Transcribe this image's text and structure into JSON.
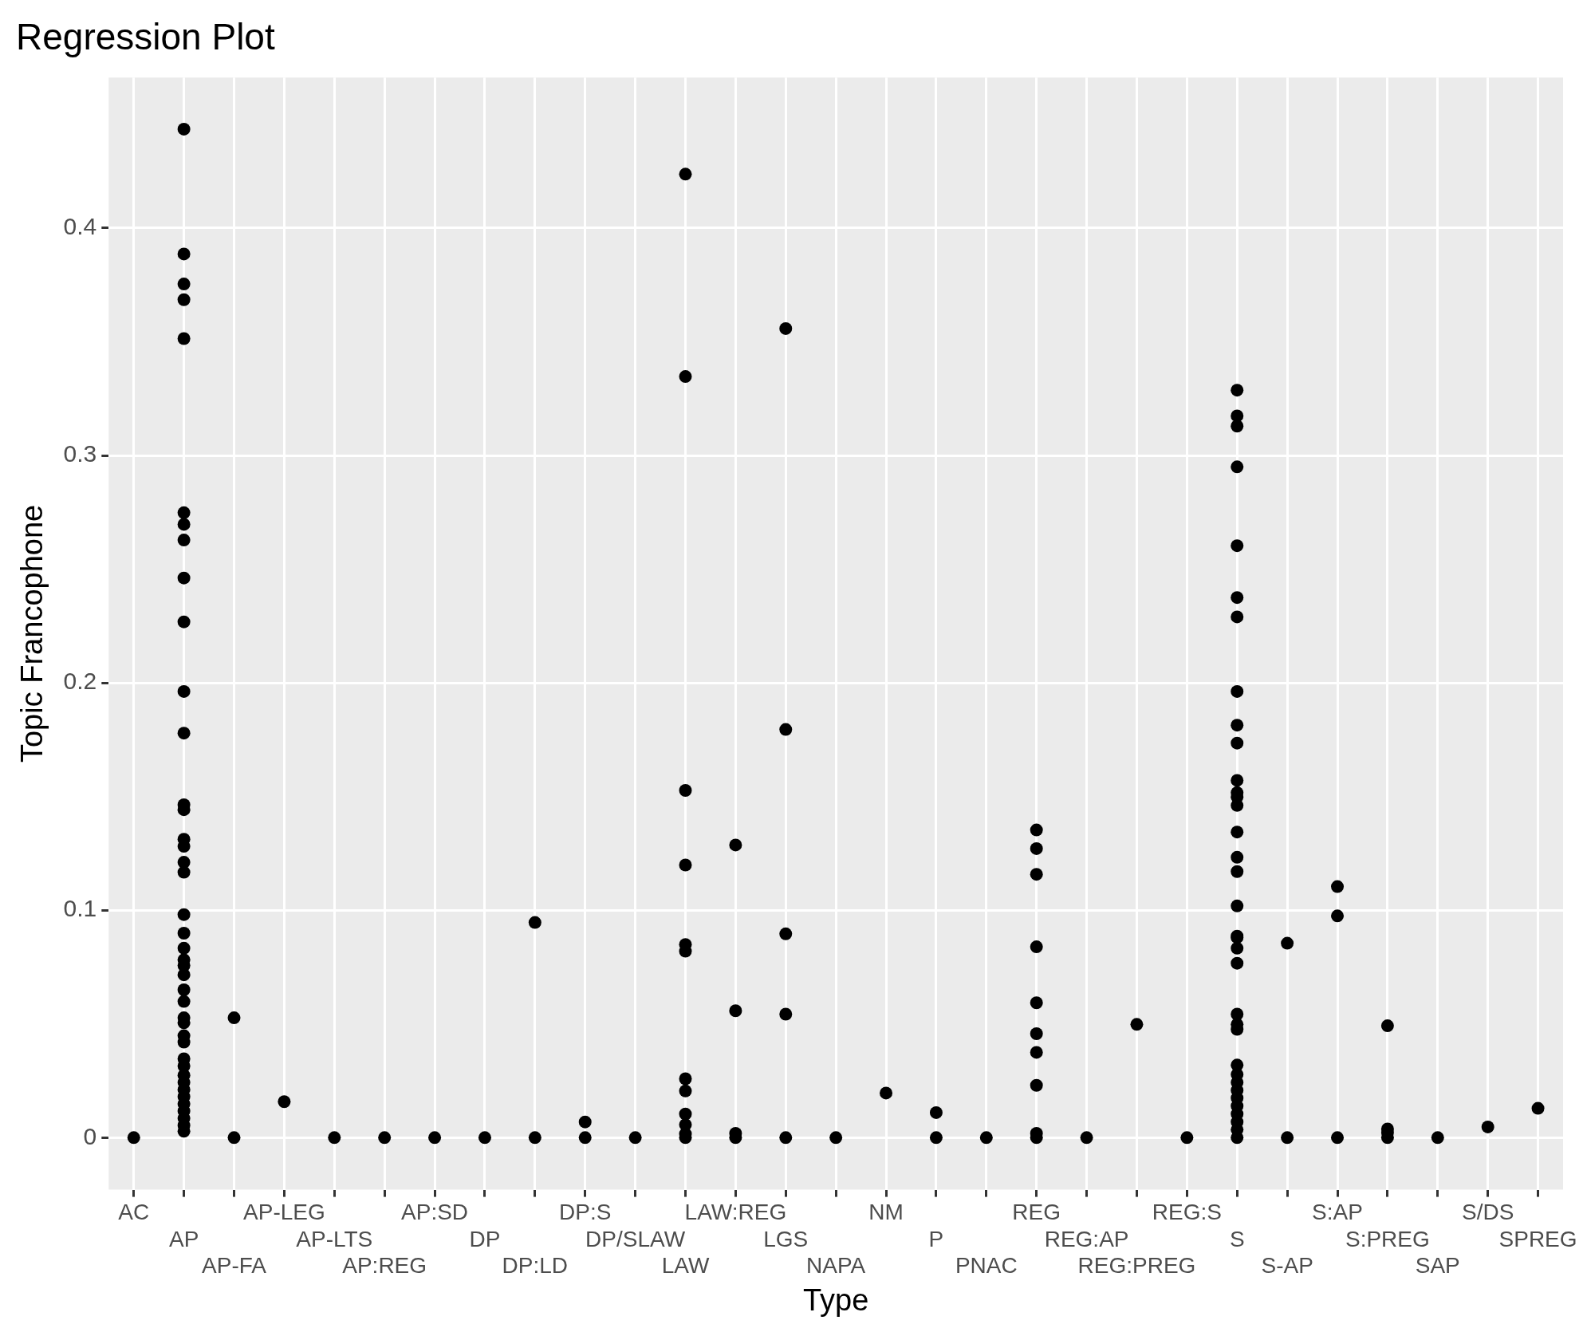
{
  "chart_data": {
    "type": "scatter",
    "title": "Regression Plot",
    "xlabel": "Type",
    "ylabel": "Topic Francophone",
    "categories": [
      "AC",
      "AP",
      "AP-FA",
      "AP-LEG",
      "AP-LTS",
      "AP:REG",
      "AP:SD",
      "DP",
      "DP:LD",
      "DP:S",
      "DP/SLAW",
      "LAW",
      "LAW:REG",
      "LGS",
      "NAPA",
      "NM",
      "P",
      "PNAC",
      "REG",
      "REG:AP",
      "REG:PREG",
      "REG:S",
      "S",
      "S-AP",
      "S:AP",
      "S:PREG",
      "SAP",
      "S/DS",
      "SPREG"
    ],
    "series": [
      {
        "color": "#000000",
        "x": [
          "AC",
          "AP",
          "AP",
          "AP",
          "AP",
          "AP",
          "AP",
          "AP",
          "AP",
          "AP",
          "AP",
          "AP",
          "AP",
          "AP",
          "AP",
          "AP",
          "AP",
          "AP",
          "AP",
          "AP",
          "AP",
          "AP",
          "AP",
          "AP",
          "AP",
          "AP",
          "AP",
          "AP",
          "AP",
          "AP",
          "AP",
          "AP",
          "AP",
          "AP",
          "AP",
          "AP",
          "AP",
          "AP",
          "AP",
          "AP",
          "AP",
          "AP",
          "AP-FA",
          "AP-FA",
          "AP-LEG",
          "AP-LTS",
          "AP:REG",
          "AP:SD",
          "DP",
          "DP:LD",
          "DP:LD",
          "DP:S",
          "DP:S",
          "DP/SLAW",
          "LAW",
          "LAW",
          "LAW",
          "LAW",
          "LAW",
          "LAW",
          "LAW",
          "LAW",
          "LAW",
          "LAW",
          "LAW",
          "LAW",
          "LAW:REG",
          "LAW:REG",
          "LAW:REG",
          "LAW:REG",
          "LGS",
          "LGS",
          "LGS",
          "LGS",
          "LGS",
          "NAPA",
          "NM",
          "P",
          "P",
          "PNAC",
          "REG",
          "REG",
          "REG",
          "REG",
          "REG",
          "REG",
          "REG",
          "REG",
          "REG",
          "REG",
          "REG:AP",
          "REG:PREG",
          "REG:S",
          "S",
          "S",
          "S",
          "S",
          "S",
          "S",
          "S",
          "S",
          "S",
          "S",
          "S",
          "S",
          "S",
          "S",
          "S",
          "S",
          "S",
          "S",
          "S",
          "S",
          "S",
          "S",
          "S",
          "S",
          "S",
          "S",
          "S",
          "S",
          "S",
          "S",
          "S",
          "S",
          "S",
          "S",
          "S",
          "S-AP",
          "S-AP",
          "S:AP",
          "S:AP",
          "S:AP",
          "S:PREG",
          "S:PREG",
          "S:PREG",
          "S:PREG",
          "SAP",
          "S/DS",
          "SPREG"
        ],
        "values": [
          0,
          0.4435,
          0.3886,
          0.3754,
          0.3685,
          0.3514,
          0.2748,
          0.2697,
          0.2628,
          0.2461,
          0.2268,
          0.1962,
          0.1779,
          0.1464,
          0.1442,
          0.1312,
          0.1281,
          0.1211,
          0.1167,
          0.0981,
          0.0899,
          0.0833,
          0.0782,
          0.0757,
          0.0716,
          0.065,
          0.0599,
          0.0527,
          0.0505,
          0.0448,
          0.042,
          0.0347,
          0.0315,
          0.0274,
          0.0243,
          0.0211,
          0.018,
          0.0148,
          0.0117,
          0.0085,
          0.0054,
          0.0028,
          0,
          0.0527,
          0.0158,
          0,
          0,
          0,
          0,
          0,
          0.0946,
          0,
          0.0069,
          0,
          0,
          0.4237,
          0.3347,
          0.1527,
          0.1199,
          0.0849,
          0.082,
          0.0259,
          0.0205,
          0.0104,
          0.0057,
          0.0016,
          0,
          0.1287,
          0.0558,
          0.0019,
          0,
          0.3558,
          0.1795,
          0.0896,
          0.0543,
          0,
          0.0196,
          0,
          0.011,
          0,
          0,
          0.1353,
          0.1271,
          0.1158,
          0.0839,
          0.0593,
          0.0457,
          0.0375,
          0.023,
          0.0019,
          0,
          0.0498,
          0,
          0.0886,
          0.3287,
          0.3174,
          0.3129,
          0.295,
          0.2603,
          0.2375,
          0.229,
          0.1962,
          0.1814,
          0.1735,
          0.1571,
          0.1517,
          0.1498,
          0.1461,
          0.1344,
          0.1233,
          0.117,
          0.1019,
          0.088,
          0.0833,
          0.0767,
          0.0543,
          0.0498,
          0.0476,
          0.0319,
          0.0278,
          0.0243,
          0.0208,
          0.0174,
          0.0139,
          0.0104,
          0.0069,
          0.0035,
          0,
          0.0855,
          0,
          0.1104,
          0.0975,
          0,
          0.0492,
          0.0038,
          0.0022,
          0,
          0,
          0.0047,
          0.0129
        ]
      }
    ],
    "ylim": [
      -0.0229,
      0.4662
    ],
    "yticks": [
      0,
      0.1,
      0.2,
      0.3,
      0.4
    ],
    "grid": true,
    "legend": false,
    "marker": "circle"
  }
}
